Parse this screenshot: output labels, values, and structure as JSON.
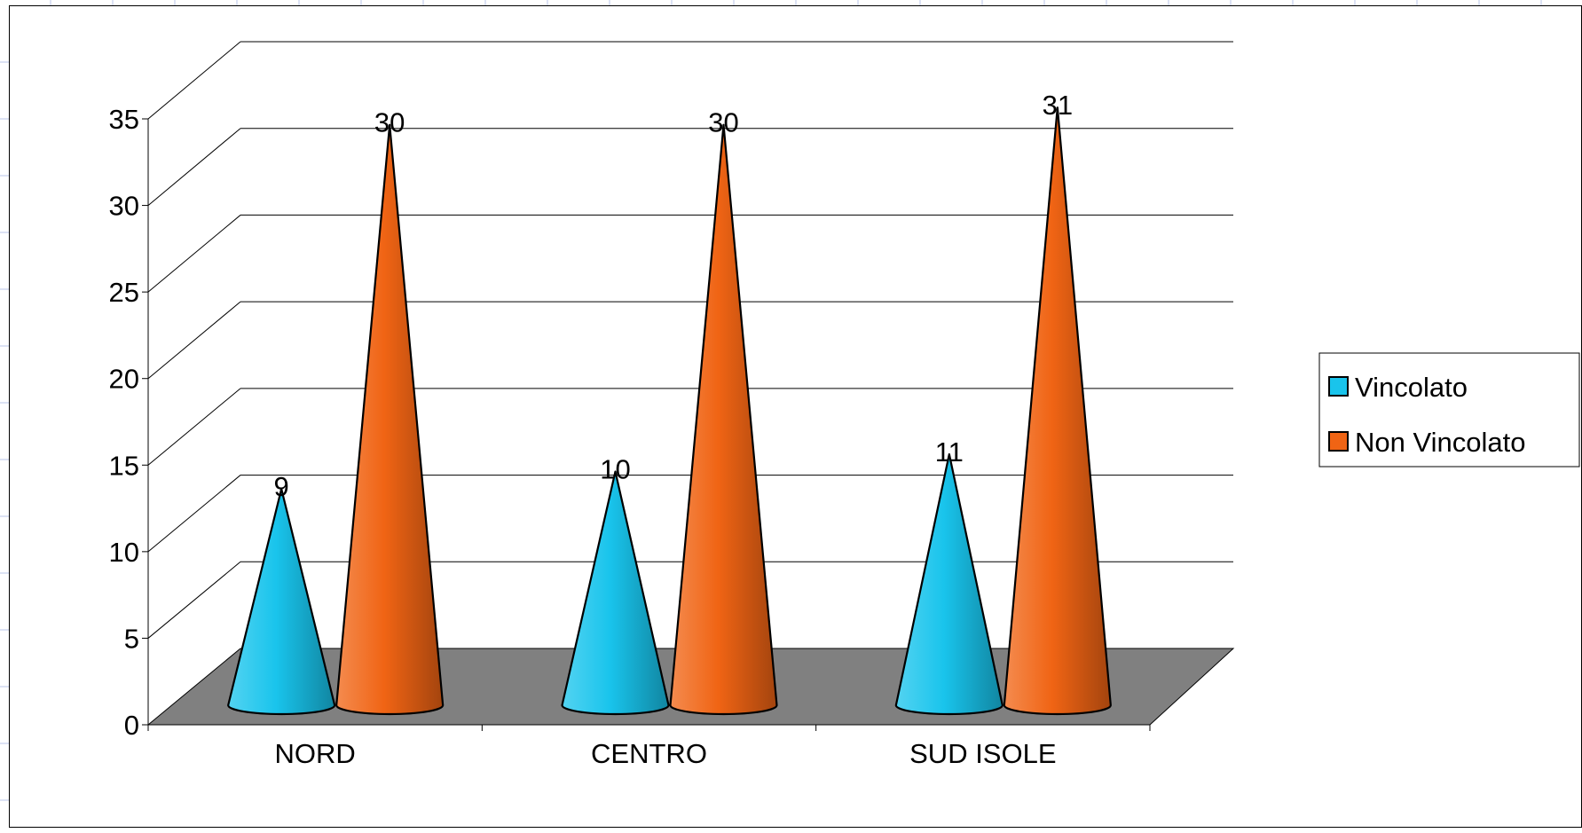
{
  "chart_data": {
    "type": "bar",
    "style": "3d-cone",
    "categories": [
      "NORD",
      "CENTRO",
      "SUD ISOLE"
    ],
    "series": [
      {
        "name": "Vincolato",
        "values": [
          9,
          10,
          11
        ],
        "color": "#19c4ec"
      },
      {
        "name": "Non Vincolato",
        "values": [
          30,
          30,
          31
        ],
        "color": "#f06414"
      }
    ],
    "title": "",
    "xlabel": "",
    "ylabel": "",
    "ylim": [
      0,
      35
    ],
    "yticks": [
      "0",
      "5",
      "10",
      "15",
      "20",
      "25",
      "30",
      "35"
    ],
    "grid": true,
    "legend_position": "right",
    "floor_color": "#808080",
    "data_labels": true
  }
}
